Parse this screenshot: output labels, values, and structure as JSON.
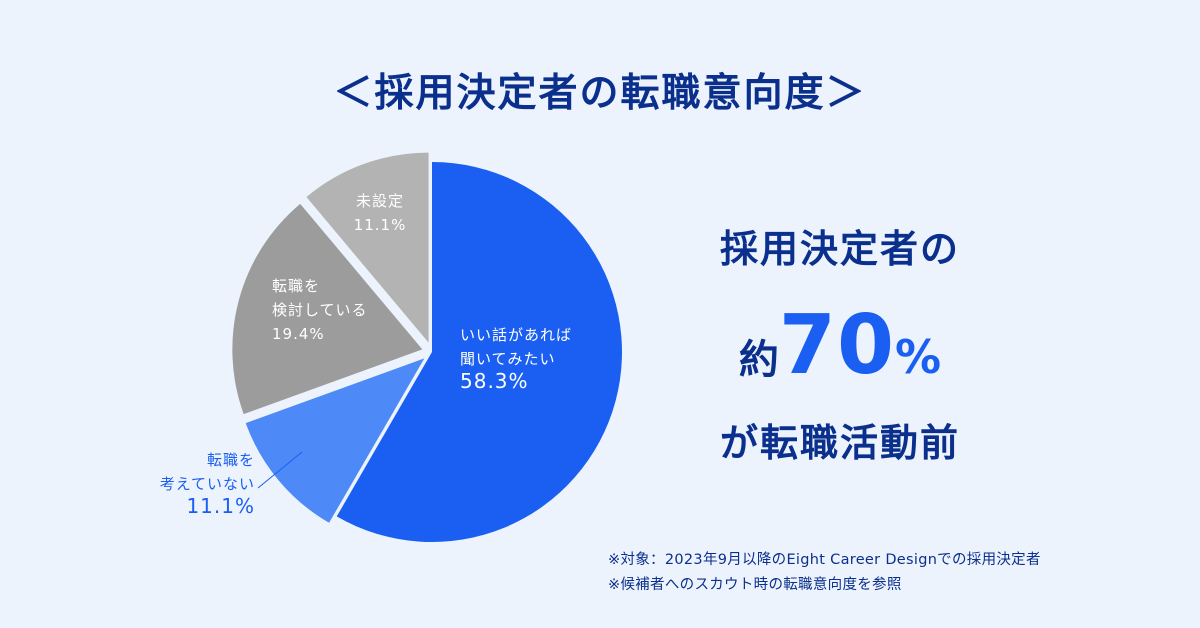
{
  "title": "＜採用決定者の転職意向度＞",
  "headline": {
    "line1": "採用決定者の",
    "prefix": "約",
    "number": "70",
    "percent": "%",
    "line3": "が転職活動前"
  },
  "notes": [
    "※対象：2023年9月以降のEight Career Designでの採用決定者",
    "※候補者へのスカウト時の転職意向度を参照"
  ],
  "colors": {
    "primary_blue": "#1a5ff2",
    "light_blue": "#4d8af7",
    "gray_dark": "#9c9c9c",
    "gray_light": "#b3b3b3",
    "navy": "#0b2f8c",
    "background": "#ecf3fd"
  },
  "chart_data": {
    "type": "pie",
    "start": "12 o'clock, clockwise",
    "slices": [
      {
        "label": [
          "いい話があれば",
          "聞いてみたい"
        ],
        "value": 58.3,
        "value_label": "58.3%",
        "color": "#1a5ff2"
      },
      {
        "label": [
          "転職を",
          "考えていない"
        ],
        "value": 11.1,
        "value_label": "11.1%",
        "color": "#4d8af7",
        "exploded": true
      },
      {
        "label": [
          "転職を",
          "検討している"
        ],
        "value": 19.4,
        "value_label": "19.4%",
        "color": "#9c9c9c",
        "exploded": true
      },
      {
        "label": [
          "未設定"
        ],
        "value": 11.1,
        "value_label": "11.1%",
        "color": "#b3b3b3",
        "exploded": true
      }
    ]
  }
}
